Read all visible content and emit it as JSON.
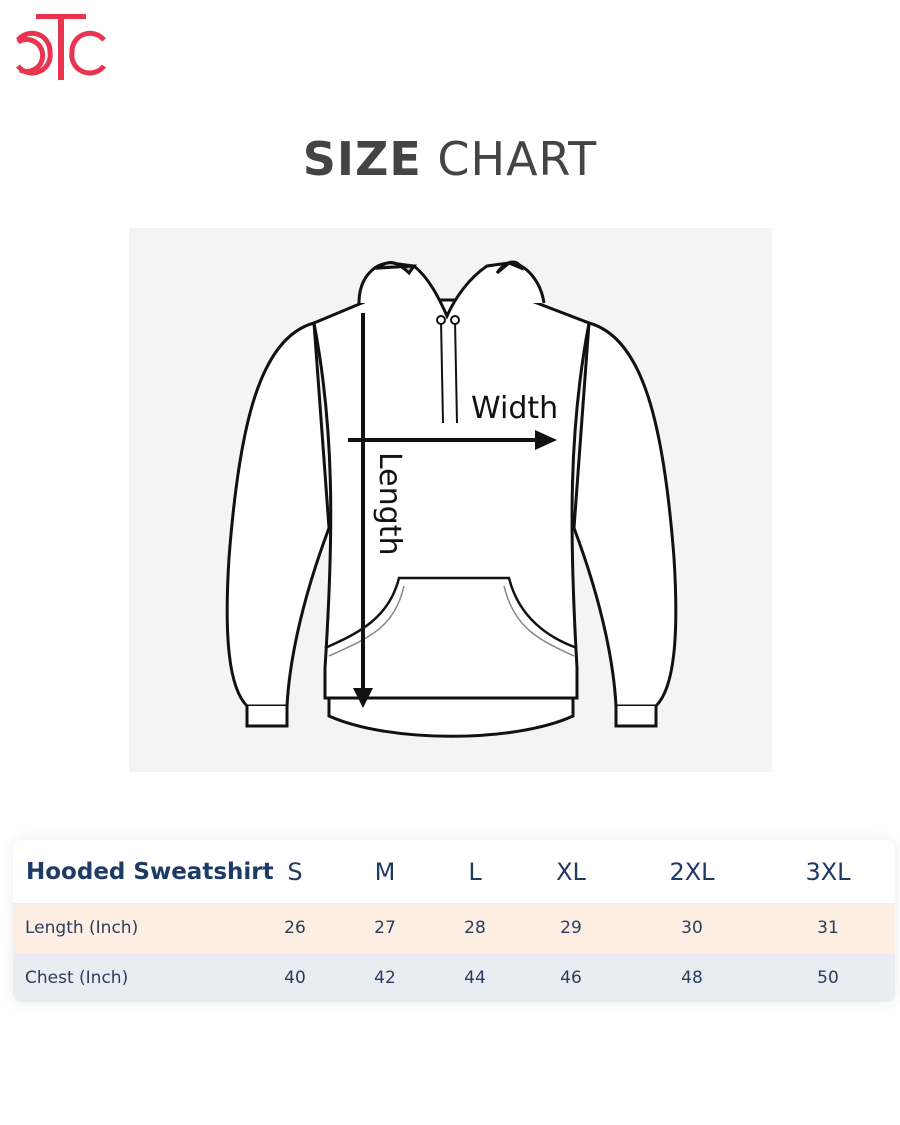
{
  "logo": {
    "text": "CTC",
    "color": "#e8344e"
  },
  "title": {
    "bold": "SIZE",
    "light": "CHART"
  },
  "figure": {
    "width_label": "Width",
    "length_label": "Length"
  },
  "table": {
    "header": "Hooded Sweatshirt",
    "sizes": [
      "S",
      "M",
      "L",
      "XL",
      "2XL",
      "3XL"
    ],
    "rows": [
      {
        "label": "Length (Inch)",
        "values": [
          "26",
          "27",
          "28",
          "29",
          "30",
          "31"
        ],
        "bg": "#fdeee4"
      },
      {
        "label": "Chest (Inch)",
        "values": [
          "40",
          "42",
          "44",
          "46",
          "48",
          "50"
        ],
        "bg": "#e9edf1"
      }
    ]
  }
}
